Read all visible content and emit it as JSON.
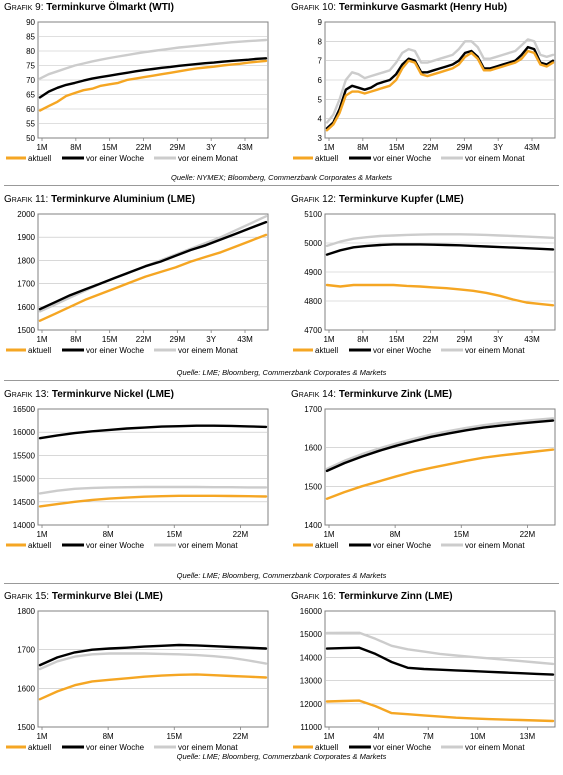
{
  "colors": {
    "aktuell": "#f5a623",
    "week": "#000000",
    "month": "#cccccc"
  },
  "legend": {
    "aktuell": "aktuell",
    "week": "vor einer Woche",
    "month": "vor einem Monat"
  },
  "sources": {
    "s1": "Quelle: NYMEX; Bloomberg, Commerzbank Corporates & Markets",
    "s2": "Quelle: LME; Bloomberg, Commerzbank Corporates & Markets",
    "s3": "Quelle: LME; Bloomberg, Commerzbank Corporates & Markets",
    "s4": "Quelle: LME; Bloomberg, Commerzbank Corporates & Markets"
  },
  "chart_data": [
    {
      "id": "g9",
      "label": "Grafik 9:",
      "title": "Terminkurve Ölmarkt (WTI)",
      "type": "line",
      "xticks": [
        "1M",
        "8M",
        "15M",
        "22M",
        "29M",
        "3Y",
        "43M"
      ],
      "ylim": [
        50,
        90
      ],
      "yticks": [
        "50",
        "55",
        "60",
        "65",
        "70",
        "75",
        "80",
        "85",
        "90"
      ],
      "series": [
        {
          "name": "aktuell",
          "color": "#f5a623",
          "values": [
            59.5,
            61,
            62.5,
            64.5,
            65.5,
            66.5,
            67,
            68,
            68.5,
            69,
            70,
            70.5,
            71,
            71.5,
            72,
            72.5,
            73,
            73.5,
            74,
            74.3,
            74.6,
            75,
            75.3,
            75.6,
            76,
            76.3,
            76.6
          ]
        },
        {
          "name": "vor einer Woche",
          "color": "#000000",
          "values": [
            64,
            66,
            67.3,
            68.3,
            69,
            69.8,
            70.5,
            71,
            71.5,
            72,
            72.5,
            73,
            73.4,
            73.8,
            74.2,
            74.5,
            74.9,
            75.2,
            75.5,
            75.8,
            76,
            76.3,
            76.6,
            76.8,
            77,
            77.3,
            77.5
          ]
        },
        {
          "name": "vor einem Monat",
          "color": "#cccccc",
          "values": [
            70.5,
            72,
            73,
            74,
            75,
            75.7,
            76.4,
            77,
            77.6,
            78.1,
            78.6,
            79.1,
            79.6,
            80,
            80.4,
            80.8,
            81.2,
            81.5,
            81.8,
            82.1,
            82.4,
            82.7,
            83,
            83.2,
            83.4,
            83.6,
            83.8
          ]
        }
      ]
    },
    {
      "id": "g10",
      "label": "Grafik 10:",
      "title": "Terminkurve Gasmarkt (Henry Hub)",
      "type": "line",
      "xticks": [
        "1M",
        "8M",
        "15M",
        "22M",
        "29M",
        "3Y",
        "43M"
      ],
      "ylim": [
        3,
        9
      ],
      "yticks": [
        "3",
        "4",
        "5",
        "6",
        "7",
        "8",
        "9"
      ],
      "series": [
        {
          "name": "aktuell",
          "color": "#f5a623",
          "values": [
            3.4,
            3.7,
            4.3,
            5.2,
            5.4,
            5.4,
            5.3,
            5.4,
            5.5,
            5.6,
            5.7,
            6.0,
            6.6,
            7.0,
            6.9,
            6.3,
            6.2,
            6.3,
            6.4,
            6.5,
            6.6,
            6.8,
            7.2,
            7.4,
            7.1,
            6.5,
            6.5,
            6.6,
            6.7,
            6.8,
            6.9,
            7.1,
            7.5,
            7.4,
            6.8,
            6.7,
            6.9
          ]
        },
        {
          "name": "vor einer Woche",
          "color": "#000000",
          "values": [
            3.5,
            3.8,
            4.5,
            5.5,
            5.7,
            5.6,
            5.5,
            5.6,
            5.8,
            5.9,
            6.0,
            6.3,
            6.8,
            7.1,
            7.0,
            6.4,
            6.4,
            6.5,
            6.6,
            6.7,
            6.8,
            7.0,
            7.4,
            7.5,
            7.2,
            6.6,
            6.6,
            6.7,
            6.8,
            6.9,
            7.0,
            7.3,
            7.7,
            7.6,
            6.9,
            6.8,
            7.0
          ]
        },
        {
          "name": "vor einem Monat",
          "color": "#cccccc",
          "values": [
            3.8,
            4.2,
            5.0,
            6.0,
            6.4,
            6.3,
            6.1,
            6.2,
            6.3,
            6.4,
            6.5,
            6.9,
            7.4,
            7.6,
            7.5,
            6.9,
            6.9,
            7.0,
            7.1,
            7.2,
            7.3,
            7.6,
            8.0,
            8.0,
            7.7,
            7.1,
            7.1,
            7.2,
            7.3,
            7.4,
            7.5,
            7.8,
            8.1,
            8.0,
            7.3,
            7.2,
            7.3
          ]
        }
      ]
    },
    {
      "id": "g11",
      "label": "Grafik 11:",
      "title": "Terminkurve Aluminium (LME)",
      "type": "line",
      "xticks": [
        "1M",
        "8M",
        "15M",
        "22M",
        "29M",
        "3Y",
        "43M"
      ],
      "ylim": [
        1500,
        2000
      ],
      "yticks": [
        "1500",
        "1600",
        "1700",
        "1800",
        "1900",
        "2000"
      ],
      "series": [
        {
          "name": "aktuell",
          "color": "#f5a623",
          "values": [
            1540,
            1570,
            1600,
            1630,
            1655,
            1680,
            1705,
            1730,
            1750,
            1770,
            1795,
            1815,
            1835,
            1860,
            1885,
            1910
          ]
        },
        {
          "name": "vor einer Woche",
          "color": "#000000",
          "values": [
            1590,
            1620,
            1650,
            1675,
            1700,
            1725,
            1750,
            1775,
            1795,
            1820,
            1845,
            1865,
            1890,
            1915,
            1940,
            1965
          ]
        },
        {
          "name": "vor einem Monat",
          "color": "#cccccc",
          "values": [
            1580,
            1610,
            1640,
            1670,
            1700,
            1725,
            1750,
            1775,
            1800,
            1825,
            1850,
            1875,
            1900,
            1930,
            1960,
            1990
          ]
        }
      ]
    },
    {
      "id": "g12",
      "label": "Grafik 12:",
      "title": "Terminkurve Kupfer (LME)",
      "type": "line",
      "xticks": [
        "1M",
        "8M",
        "15M",
        "22M",
        "29M",
        "3Y",
        "43M"
      ],
      "ylim": [
        4700,
        5100
      ],
      "yticks": [
        "4700",
        "4800",
        "4900",
        "5000",
        "5100"
      ],
      "series": [
        {
          "name": "aktuell",
          "color": "#f5a623",
          "values": [
            4855,
            4850,
            4855,
            4855,
            4855,
            4855,
            4852,
            4850,
            4847,
            4844,
            4840,
            4835,
            4828,
            4818,
            4805,
            4795,
            4790,
            4785
          ]
        },
        {
          "name": "vor einer Woche",
          "color": "#000000",
          "values": [
            4960,
            4975,
            4985,
            4990,
            4993,
            4995,
            4995,
            4995,
            4994,
            4993,
            4992,
            4990,
            4988,
            4986,
            4984,
            4982,
            4980,
            4978
          ]
        },
        {
          "name": "vor einem Monat",
          "color": "#cccccc",
          "values": [
            4990,
            5005,
            5015,
            5020,
            5024,
            5026,
            5028,
            5029,
            5030,
            5030,
            5030,
            5029,
            5028,
            5026,
            5024,
            5022,
            5020,
            5018
          ]
        }
      ]
    },
    {
      "id": "g13",
      "label": "Grafik 13:",
      "title": "Terminkurve Nickel (LME)",
      "type": "line",
      "xticks": [
        "1M",
        "8M",
        "15M",
        "22M"
      ],
      "ylim": [
        14000,
        16500
      ],
      "yticks": [
        "14000",
        "14500",
        "15000",
        "15500",
        "16000",
        "16500"
      ],
      "series": [
        {
          "name": "aktuell",
          "color": "#f5a623",
          "values": [
            14400,
            14450,
            14500,
            14540,
            14570,
            14590,
            14610,
            14620,
            14630,
            14630,
            14630,
            14625,
            14620,
            14615
          ]
        },
        {
          "name": "vor einer Woche",
          "color": "#000000",
          "values": [
            15870,
            15930,
            15980,
            16020,
            16050,
            16080,
            16100,
            16120,
            16130,
            16140,
            16140,
            16135,
            16125,
            16115
          ]
        },
        {
          "name": "vor einem Monat",
          "color": "#cccccc",
          "values": [
            14680,
            14740,
            14780,
            14800,
            14810,
            14815,
            14820,
            14820,
            14820,
            14820,
            14815,
            14815,
            14810,
            14810
          ]
        }
      ]
    },
    {
      "id": "g14",
      "label": "Grafik 14:",
      "title": "Terminkurve Zink (LME)",
      "type": "line",
      "xticks": [
        "1M",
        "8M",
        "15M",
        "22M"
      ],
      "ylim": [
        1400,
        1700
      ],
      "yticks": [
        "1400",
        "1500",
        "1600",
        "1700"
      ],
      "series": [
        {
          "name": "aktuell",
          "color": "#f5a623",
          "values": [
            1468,
            1485,
            1500,
            1513,
            1526,
            1538,
            1548,
            1557,
            1566,
            1574,
            1580,
            1585,
            1590,
            1595
          ]
        },
        {
          "name": "vor einer Woche",
          "color": "#000000",
          "values": [
            1540,
            1560,
            1577,
            1592,
            1605,
            1617,
            1628,
            1637,
            1645,
            1652,
            1657,
            1662,
            1666,
            1670
          ]
        },
        {
          "name": "vor einem Monat",
          "color": "#cccccc",
          "values": [
            1545,
            1566,
            1583,
            1598,
            1611,
            1623,
            1634,
            1643,
            1651,
            1658,
            1664,
            1668,
            1672,
            1676
          ]
        }
      ]
    },
    {
      "id": "g15",
      "label": "Grafik 15:",
      "title": "Terminkurve Blei (LME)",
      "type": "line",
      "xticks": [
        "1M",
        "8M",
        "15M",
        "22M"
      ],
      "ylim": [
        1500,
        1800
      ],
      "yticks": [
        "1500",
        "1600",
        "1700",
        "1800"
      ],
      "series": [
        {
          "name": "aktuell",
          "color": "#f5a623",
          "values": [
            1572,
            1592,
            1608,
            1618,
            1622,
            1626,
            1630,
            1633,
            1635,
            1636,
            1634,
            1632,
            1630,
            1628
          ]
        },
        {
          "name": "vor einer Woche",
          "color": "#000000",
          "values": [
            1660,
            1680,
            1693,
            1700,
            1703,
            1705,
            1708,
            1710,
            1712,
            1711,
            1709,
            1707,
            1705,
            1703
          ]
        },
        {
          "name": "vor einem Monat",
          "color": "#cccccc",
          "values": [
            1650,
            1670,
            1682,
            1688,
            1690,
            1690,
            1690,
            1689,
            1688,
            1686,
            1683,
            1679,
            1672,
            1664
          ]
        }
      ]
    },
    {
      "id": "g16",
      "label": "Grafik 16:",
      "title": "Terminkurve Zinn (LME)",
      "type": "line",
      "xticks": [
        "1M",
        "4M",
        "7M",
        "10M",
        "13M"
      ],
      "ylim": [
        11000,
        16000
      ],
      "yticks": [
        "11000",
        "12000",
        "13000",
        "14000",
        "15000",
        "16000"
      ],
      "series": [
        {
          "name": "aktuell",
          "color": "#f5a623",
          "values": [
            12100,
            12120,
            12140,
            11900,
            11600,
            11550,
            11500,
            11450,
            11400,
            11370,
            11340,
            11320,
            11300,
            11280,
            11260
          ]
        },
        {
          "name": "vor einer Woche",
          "color": "#000000",
          "values": [
            14380,
            14400,
            14420,
            14150,
            13800,
            13550,
            13500,
            13470,
            13440,
            13410,
            13380,
            13350,
            13320,
            13290,
            13260
          ]
        },
        {
          "name": "vor einem Monat",
          "color": "#cccccc",
          "values": [
            15050,
            15060,
            15060,
            14800,
            14500,
            14350,
            14250,
            14150,
            14080,
            14020,
            13960,
            13900,
            13840,
            13780,
            13720
          ]
        }
      ]
    }
  ]
}
